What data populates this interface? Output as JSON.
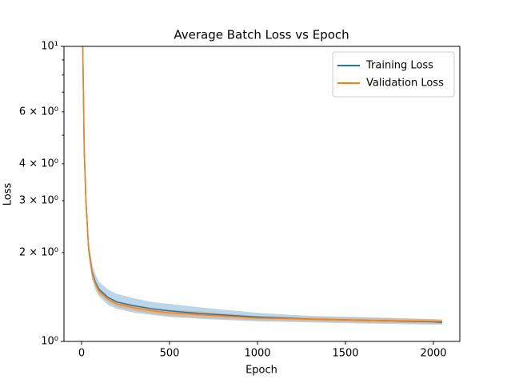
{
  "chart_data": {
    "type": "line",
    "title": "Average Batch Loss vs Epoch",
    "x_label": "Epoch",
    "y_label": "Loss",
    "log_y": true,
    "legend": "upper right",
    "x": [
      5,
      15,
      25,
      40,
      60,
      80,
      100,
      150,
      200,
      300,
      400,
      500,
      700,
      1000,
      1300,
      1600,
      2000,
      2050
    ],
    "series": [
      {
        "name": "Training Loss",
        "color": "#1f77b4",
        "values": [
          12,
          4.5,
          3.0,
          2.07,
          1.72,
          1.58,
          1.5,
          1.41,
          1.36,
          1.32,
          1.29,
          1.27,
          1.24,
          1.21,
          1.19,
          1.18,
          1.165,
          1.16
        ],
        "lower": [
          11,
          4.2,
          2.8,
          1.95,
          1.62,
          1.49,
          1.42,
          1.33,
          1.29,
          1.25,
          1.23,
          1.21,
          1.19,
          1.17,
          1.16,
          1.15,
          1.14,
          1.14
        ],
        "upper": [
          13,
          4.8,
          3.2,
          2.2,
          1.83,
          1.68,
          1.59,
          1.5,
          1.45,
          1.4,
          1.36,
          1.34,
          1.3,
          1.25,
          1.22,
          1.21,
          1.19,
          1.18
        ]
      },
      {
        "name": "Validation Loss",
        "color": "#ff7f0e",
        "values": [
          12,
          4.4,
          2.95,
          2.05,
          1.7,
          1.56,
          1.48,
          1.39,
          1.34,
          1.3,
          1.27,
          1.25,
          1.23,
          1.2,
          1.19,
          1.18,
          1.17,
          1.17
        ],
        "lower": [
          11.5,
          4.2,
          2.85,
          1.99,
          1.65,
          1.52,
          1.44,
          1.36,
          1.31,
          1.27,
          1.24,
          1.22,
          1.2,
          1.18,
          1.17,
          1.16,
          1.15,
          1.15
        ],
        "upper": [
          12.5,
          4.6,
          3.05,
          2.11,
          1.75,
          1.6,
          1.52,
          1.42,
          1.37,
          1.33,
          1.3,
          1.28,
          1.26,
          1.22,
          1.21,
          1.2,
          1.19,
          1.19
        ]
      }
    ],
    "xlim": [
      -100,
      2150
    ],
    "xticks": [
      0,
      500,
      1000,
      1500,
      2000
    ],
    "ylim": [
      1,
      10
    ],
    "yticks": [
      {
        "value": 1,
        "label": "10⁰"
      },
      {
        "value": 2,
        "label": "2 × 10⁰"
      },
      {
        "value": 3,
        "label": "3 × 10⁰"
      },
      {
        "value": 4,
        "label": "4 × 10⁰"
      },
      {
        "value": 6,
        "label": "6 × 10⁰"
      },
      {
        "value": 10,
        "label": "10¹"
      }
    ],
    "yminor_ticks": [
      5,
      7,
      8,
      9
    ]
  }
}
